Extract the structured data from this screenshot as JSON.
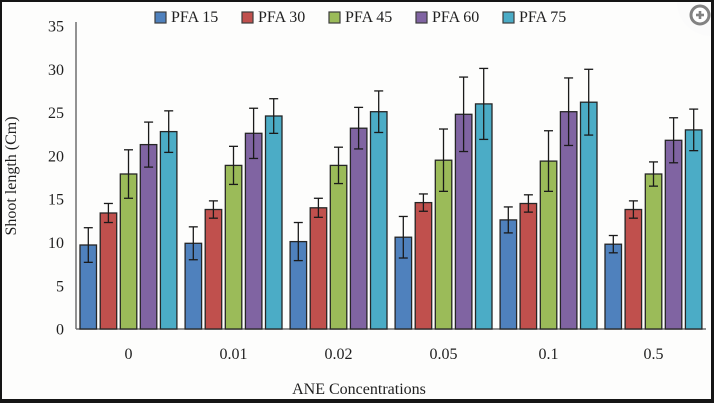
{
  "chart_data": {
    "type": "bar",
    "title": "",
    "xlabel": "ANE Concentrations",
    "ylabel": "Shoot length (Cm)",
    "categories": [
      "0",
      "0.01",
      "0.02",
      "0.05",
      "0.1",
      "0.5"
    ],
    "series": [
      {
        "name": "PFA 15",
        "color": "#4F81BD",
        "values": [
          9.7,
          9.9,
          10.1,
          10.6,
          12.6,
          9.8
        ],
        "errors": [
          2.0,
          1.9,
          2.2,
          2.4,
          1.5,
          1.0
        ]
      },
      {
        "name": "PFA 30",
        "color": "#C0504D",
        "values": [
          13.4,
          13.8,
          14.0,
          14.6,
          14.5,
          13.8
        ],
        "errors": [
          1.1,
          1.0,
          1.1,
          1.0,
          1.0,
          1.0
        ]
      },
      {
        "name": "PFA 45",
        "color": "#9BBB59",
        "values": [
          17.9,
          18.9,
          18.9,
          19.5,
          19.4,
          17.9
        ],
        "errors": [
          2.8,
          2.2,
          2.1,
          3.6,
          3.5,
          1.4
        ]
      },
      {
        "name": "PFA 60",
        "color": "#8064A2",
        "values": [
          21.3,
          22.6,
          23.2,
          24.8,
          25.1,
          21.8
        ],
        "errors": [
          2.6,
          2.9,
          2.4,
          4.3,
          3.9,
          2.6
        ]
      },
      {
        "name": "PFA 75",
        "color": "#4BACC6",
        "values": [
          22.8,
          24.6,
          25.1,
          26.0,
          26.2,
          23.0
        ],
        "errors": [
          2.4,
          2.0,
          2.4,
          4.1,
          3.8,
          2.4
        ]
      }
    ],
    "ylim": [
      0,
      35
    ],
    "ytick_step": 5,
    "grid": false,
    "legend_position": "top",
    "error_bars": true,
    "bar_border_color": "#262626",
    "axis_color": "#6e6e6e"
  },
  "overlay": {
    "zoom_button_icon": "zoom-in",
    "icon_color": "#828282"
  }
}
